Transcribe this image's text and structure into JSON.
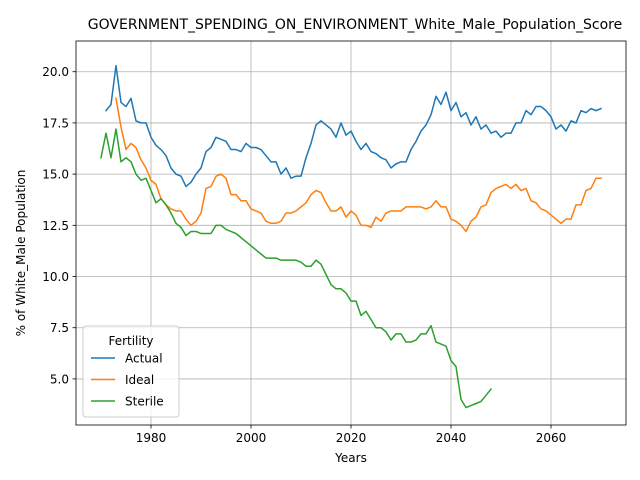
{
  "chart_data": {
    "type": "line",
    "title": "GOVERNMENT_SPENDING_ON_ENVIRONMENT_White_Male_Population_Score",
    "xlabel": "Years",
    "ylabel": "% of White_Male Population",
    "xlim": [
      1965,
      2075
    ],
    "ylim": [
      2.75,
      21.5
    ],
    "x_ticks": [
      1980,
      2000,
      2020,
      2040,
      2060
    ],
    "y_ticks": [
      5.0,
      7.5,
      10.0,
      12.5,
      15.0,
      17.5,
      20.0
    ],
    "x_tick_labels": [
      "1980",
      "2000",
      "2020",
      "2040",
      "2060"
    ],
    "y_tick_labels": [
      "5.0",
      "7.5",
      "10.0",
      "12.5",
      "15.0",
      "17.5",
      "20.0"
    ],
    "grid": true,
    "legend": {
      "title": "Fertility",
      "placement": "lower-left"
    },
    "series": [
      {
        "name": "Actual",
        "color": "#1f77b4",
        "points": [
          [
            1971,
            18.1
          ],
          [
            1972,
            18.4
          ],
          [
            1973,
            20.3
          ],
          [
            1974,
            18.5
          ],
          [
            1975,
            18.3
          ],
          [
            1976,
            18.7
          ],
          [
            1977,
            17.6
          ],
          [
            1978,
            17.5
          ],
          [
            1979,
            17.5
          ],
          [
            1980,
            16.8
          ],
          [
            1981,
            16.4
          ],
          [
            1982,
            16.2
          ],
          [
            1983,
            15.9
          ],
          [
            1984,
            15.3
          ],
          [
            1985,
            15.0
          ],
          [
            1986,
            14.9
          ],
          [
            1987,
            14.4
          ],
          [
            1988,
            14.6
          ],
          [
            1989,
            15.0
          ],
          [
            1990,
            15.3
          ],
          [
            1991,
            16.1
          ],
          [
            1992,
            16.3
          ],
          [
            1993,
            16.8
          ],
          [
            1994,
            16.7
          ],
          [
            1995,
            16.6
          ],
          [
            1996,
            16.2
          ],
          [
            1997,
            16.2
          ],
          [
            1998,
            16.1
          ],
          [
            1999,
            16.5
          ],
          [
            2000,
            16.3
          ],
          [
            2001,
            16.3
          ],
          [
            2002,
            16.2
          ],
          [
            2003,
            15.9
          ],
          [
            2004,
            15.6
          ],
          [
            2005,
            15.6
          ],
          [
            2006,
            15.0
          ],
          [
            2007,
            15.3
          ],
          [
            2008,
            14.8
          ],
          [
            2009,
            14.9
          ],
          [
            2010,
            14.9
          ],
          [
            2011,
            15.8
          ],
          [
            2012,
            16.5
          ],
          [
            2013,
            17.4
          ],
          [
            2014,
            17.6
          ],
          [
            2015,
            17.4
          ],
          [
            2016,
            17.2
          ],
          [
            2017,
            16.8
          ],
          [
            2018,
            17.5
          ],
          [
            2019,
            16.9
          ],
          [
            2020,
            17.1
          ],
          [
            2021,
            16.6
          ],
          [
            2022,
            16.2
          ],
          [
            2023,
            16.5
          ],
          [
            2024,
            16.1
          ],
          [
            2025,
            16.0
          ],
          [
            2026,
            15.8
          ],
          [
            2027,
            15.7
          ],
          [
            2028,
            15.3
          ],
          [
            2029,
            15.5
          ],
          [
            2030,
            15.6
          ],
          [
            2031,
            15.6
          ],
          [
            2032,
            16.2
          ],
          [
            2033,
            16.6
          ],
          [
            2034,
            17.1
          ],
          [
            2035,
            17.4
          ],
          [
            2036,
            17.9
          ],
          [
            2037,
            18.8
          ],
          [
            2038,
            18.4
          ],
          [
            2039,
            19.0
          ],
          [
            2040,
            18.1
          ],
          [
            2041,
            18.5
          ],
          [
            2042,
            17.8
          ],
          [
            2043,
            18.0
          ],
          [
            2044,
            17.4
          ],
          [
            2045,
            17.8
          ],
          [
            2046,
            17.2
          ],
          [
            2047,
            17.4
          ],
          [
            2048,
            17.0
          ],
          [
            2049,
            17.1
          ],
          [
            2050,
            16.8
          ],
          [
            2051,
            17.0
          ],
          [
            2052,
            17.0
          ],
          [
            2053,
            17.5
          ],
          [
            2054,
            17.5
          ],
          [
            2055,
            18.1
          ],
          [
            2056,
            17.9
          ],
          [
            2057,
            18.3
          ],
          [
            2058,
            18.3
          ],
          [
            2059,
            18.1
          ],
          [
            2060,
            17.8
          ],
          [
            2061,
            17.2
          ],
          [
            2062,
            17.4
          ],
          [
            2063,
            17.1
          ],
          [
            2064,
            17.6
          ],
          [
            2065,
            17.5
          ],
          [
            2066,
            18.1
          ],
          [
            2067,
            18.0
          ],
          [
            2068,
            18.2
          ],
          [
            2069,
            18.1
          ],
          [
            2070,
            18.2
          ]
        ]
      },
      {
        "name": "Ideal",
        "color": "#ff7f0e",
        "points": [
          [
            1973,
            18.7
          ],
          [
            1974,
            17.3
          ],
          [
            1975,
            16.2
          ],
          [
            1976,
            16.5
          ],
          [
            1977,
            16.3
          ],
          [
            1978,
            15.7
          ],
          [
            1979,
            15.3
          ],
          [
            1980,
            14.7
          ],
          [
            1981,
            14.5
          ],
          [
            1982,
            13.8
          ],
          [
            1983,
            13.5
          ],
          [
            1984,
            13.3
          ],
          [
            1985,
            13.2
          ],
          [
            1986,
            13.2
          ],
          [
            1987,
            12.8
          ],
          [
            1988,
            12.5
          ],
          [
            1989,
            12.7
          ],
          [
            1990,
            13.1
          ],
          [
            1991,
            14.3
          ],
          [
            1992,
            14.4
          ],
          [
            1993,
            14.9
          ],
          [
            1994,
            15.0
          ],
          [
            1995,
            14.8
          ],
          [
            1996,
            14.0
          ],
          [
            1997,
            14.0
          ],
          [
            1998,
            13.7
          ],
          [
            1999,
            13.7
          ],
          [
            2000,
            13.3
          ],
          [
            2001,
            13.2
          ],
          [
            2002,
            13.1
          ],
          [
            2003,
            12.7
          ],
          [
            2004,
            12.6
          ],
          [
            2005,
            12.6
          ],
          [
            2006,
            12.7
          ],
          [
            2007,
            13.1
          ],
          [
            2008,
            13.1
          ],
          [
            2009,
            13.2
          ],
          [
            2010,
            13.4
          ],
          [
            2011,
            13.6
          ],
          [
            2012,
            14.0
          ],
          [
            2013,
            14.2
          ],
          [
            2014,
            14.1
          ],
          [
            2015,
            13.6
          ],
          [
            2016,
            13.2
          ],
          [
            2017,
            13.2
          ],
          [
            2018,
            13.4
          ],
          [
            2019,
            12.9
          ],
          [
            2020,
            13.2
          ],
          [
            2021,
            13.0
          ],
          [
            2022,
            12.5
          ],
          [
            2023,
            12.5
          ],
          [
            2024,
            12.4
          ],
          [
            2025,
            12.9
          ],
          [
            2026,
            12.7
          ],
          [
            2027,
            13.1
          ],
          [
            2028,
            13.2
          ],
          [
            2029,
            13.2
          ],
          [
            2030,
            13.2
          ],
          [
            2031,
            13.4
          ],
          [
            2032,
            13.4
          ],
          [
            2033,
            13.4
          ],
          [
            2034,
            13.4
          ],
          [
            2035,
            13.3
          ],
          [
            2036,
            13.4
          ],
          [
            2037,
            13.7
          ],
          [
            2038,
            13.4
          ],
          [
            2039,
            13.4
          ],
          [
            2040,
            12.8
          ],
          [
            2041,
            12.7
          ],
          [
            2042,
            12.5
          ],
          [
            2043,
            12.2
          ],
          [
            2044,
            12.7
          ],
          [
            2045,
            12.9
          ],
          [
            2046,
            13.4
          ],
          [
            2047,
            13.5
          ],
          [
            2048,
            14.1
          ],
          [
            2049,
            14.3
          ],
          [
            2050,
            14.4
          ],
          [
            2051,
            14.5
          ],
          [
            2052,
            14.3
          ],
          [
            2053,
            14.5
          ],
          [
            2054,
            14.2
          ],
          [
            2055,
            14.3
          ],
          [
            2056,
            13.7
          ],
          [
            2057,
            13.6
          ],
          [
            2058,
            13.3
          ],
          [
            2059,
            13.2
          ],
          [
            2060,
            13.0
          ],
          [
            2061,
            12.8
          ],
          [
            2062,
            12.6
          ],
          [
            2063,
            12.8
          ],
          [
            2064,
            12.8
          ],
          [
            2065,
            13.5
          ],
          [
            2066,
            13.5
          ],
          [
            2067,
            14.2
          ],
          [
            2068,
            14.3
          ],
          [
            2069,
            14.8
          ],
          [
            2070,
            14.8
          ]
        ]
      },
      {
        "name": "Sterile",
        "color": "#2ca02c",
        "points": [
          [
            1970,
            15.8
          ],
          [
            1971,
            17.0
          ],
          [
            1972,
            15.8
          ],
          [
            1973,
            17.2
          ],
          [
            1974,
            15.6
          ],
          [
            1975,
            15.8
          ],
          [
            1976,
            15.6
          ],
          [
            1977,
            15.0
          ],
          [
            1978,
            14.7
          ],
          [
            1979,
            14.8
          ],
          [
            1980,
            14.2
          ],
          [
            1981,
            13.6
          ],
          [
            1982,
            13.8
          ],
          [
            1983,
            13.5
          ],
          [
            1984,
            13.1
          ],
          [
            1985,
            12.6
          ],
          [
            1986,
            12.4
          ],
          [
            1987,
            12.0
          ],
          [
            1988,
            12.2
          ],
          [
            1989,
            12.2
          ],
          [
            1990,
            12.1
          ],
          [
            1991,
            12.1
          ],
          [
            1992,
            12.1
          ],
          [
            1993,
            12.5
          ],
          [
            1994,
            12.5
          ],
          [
            1995,
            12.3
          ],
          [
            1996,
            12.2
          ],
          [
            1997,
            12.1
          ],
          [
            1998,
            11.9
          ],
          [
            1999,
            11.7
          ],
          [
            2000,
            11.5
          ],
          [
            2001,
            11.3
          ],
          [
            2002,
            11.1
          ],
          [
            2003,
            10.9
          ],
          [
            2004,
            10.9
          ],
          [
            2005,
            10.9
          ],
          [
            2006,
            10.8
          ],
          [
            2007,
            10.8
          ],
          [
            2008,
            10.8
          ],
          [
            2009,
            10.8
          ],
          [
            2010,
            10.7
          ],
          [
            2011,
            10.5
          ],
          [
            2012,
            10.5
          ],
          [
            2013,
            10.8
          ],
          [
            2014,
            10.6
          ],
          [
            2015,
            10.1
          ],
          [
            2016,
            9.6
          ],
          [
            2017,
            9.4
          ],
          [
            2018,
            9.4
          ],
          [
            2019,
            9.2
          ],
          [
            2020,
            8.8
          ],
          [
            2021,
            8.8
          ],
          [
            2022,
            8.1
          ],
          [
            2023,
            8.3
          ],
          [
            2024,
            7.9
          ],
          [
            2025,
            7.5
          ],
          [
            2026,
            7.5
          ],
          [
            2027,
            7.3
          ],
          [
            2028,
            6.9
          ],
          [
            2029,
            7.2
          ],
          [
            2030,
            7.2
          ],
          [
            2031,
            6.8
          ],
          [
            2032,
            6.8
          ],
          [
            2033,
            6.9
          ],
          [
            2034,
            7.2
          ],
          [
            2035,
            7.2
          ],
          [
            2036,
            7.6
          ],
          [
            2037,
            6.8
          ],
          [
            2038,
            6.7
          ],
          [
            2039,
            6.6
          ],
          [
            2040,
            5.9
          ],
          [
            2041,
            5.6
          ],
          [
            2042,
            4.0
          ],
          [
            2043,
            3.6
          ],
          [
            2044,
            3.7
          ],
          [
            2045,
            3.8
          ],
          [
            2046,
            3.9
          ],
          [
            2047,
            4.2
          ],
          [
            2048,
            4.5
          ]
        ]
      }
    ]
  }
}
